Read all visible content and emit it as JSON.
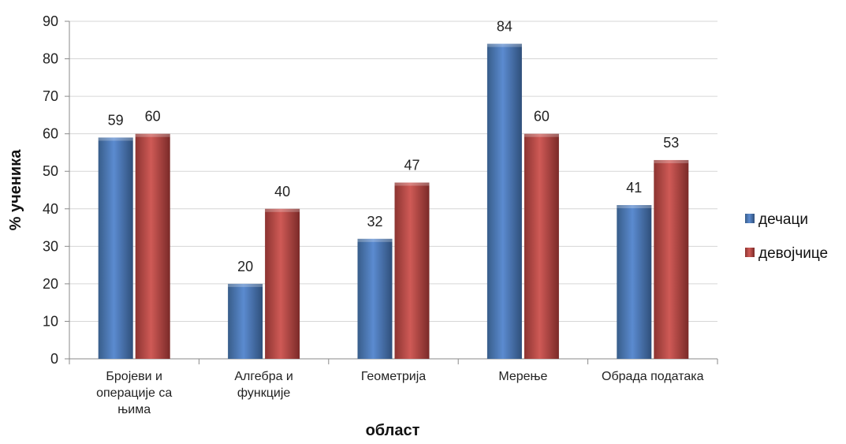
{
  "chart_data": {
    "type": "bar",
    "categories": [
      [
        "Бројеви и",
        "операције са",
        "њима"
      ],
      [
        "Алгебра и",
        "функције"
      ],
      [
        "Геометрија"
      ],
      [
        "Мерење"
      ],
      [
        "Обрада података"
      ]
    ],
    "series": [
      {
        "name": "дечаци",
        "values": [
          59,
          20,
          32,
          84,
          41
        ],
        "color": "#4f81bd"
      },
      {
        "name": "девојчице",
        "values": [
          60,
          40,
          47,
          60,
          53
        ],
        "color": "#c0504d"
      }
    ],
    "title": "",
    "xlabel": "област",
    "ylabel": "% ученика",
    "ylim": [
      0,
      90
    ],
    "yticks": [
      0,
      10,
      20,
      30,
      40,
      50,
      60,
      70,
      80,
      90
    ],
    "grid": true,
    "legend_position": "right"
  }
}
